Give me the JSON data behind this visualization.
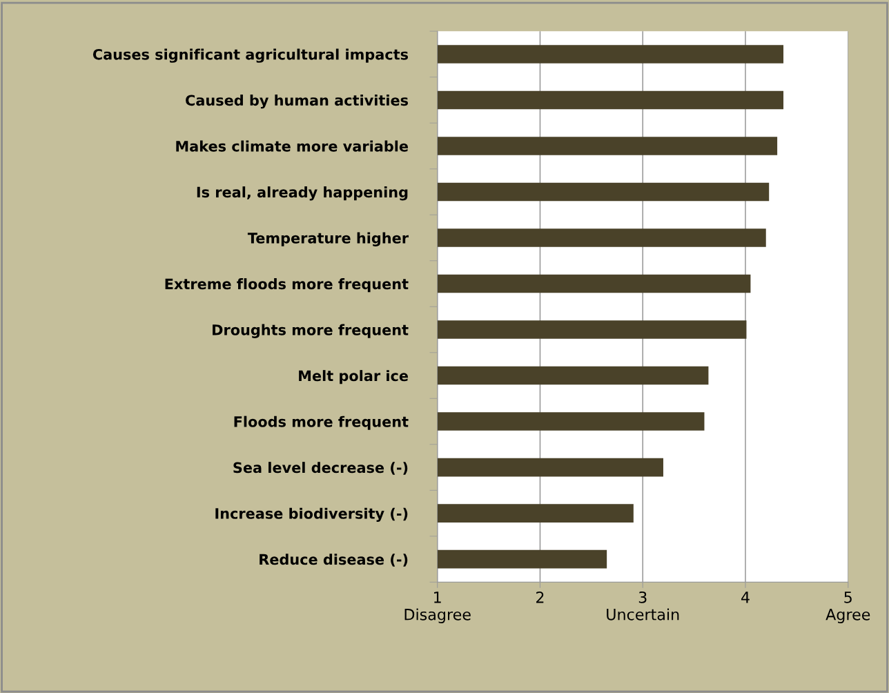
{
  "chart_data": {
    "type": "bar",
    "orientation": "horizontal",
    "categories": [
      "Causes significant agricultural impacts",
      "Caused by human activities",
      "Makes climate more variable",
      "Is real, already happening",
      "Temperature higher",
      "Extreme floods more frequent",
      "Droughts more frequent",
      "Melt polar ice",
      "Floods more frequent",
      "Sea level decrease (-)",
      "Increase biodiversity (-)",
      "Reduce disease (-)"
    ],
    "values": [
      4.37,
      4.37,
      4.31,
      4.23,
      4.2,
      4.05,
      4.01,
      3.64,
      3.6,
      3.2,
      2.91,
      2.65
    ],
    "color": "#4a4229",
    "xlim": [
      1,
      5
    ],
    "xticks": [
      {
        "value": 1,
        "label": "1\nDisagree"
      },
      2,
      {
        "value": 3,
        "label": "3\nUncertain"
      },
      4,
      {
        "value": 5,
        "label": "5\nAgree"
      }
    ],
    "grid": "x",
    "legend": false
  }
}
